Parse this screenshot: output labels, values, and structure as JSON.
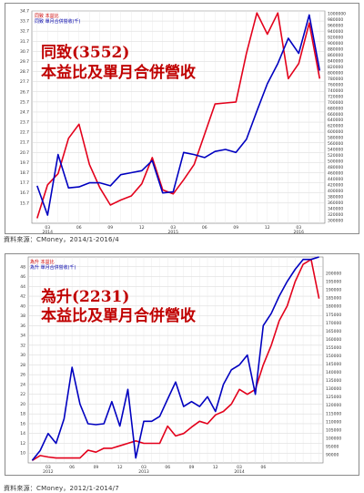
{
  "chart_data": [
    {
      "type": "line",
      "title_line1": "同致(3552)",
      "title_line2": "本益比及單月合併營收",
      "legend": [
        "同致 本益比",
        "同致 單月合併營收(千)"
      ],
      "source": "資料來源：CMoney，2014/1-2016/4",
      "left_axis": {
        "ylim": [
          13.7,
          34.7
        ],
        "ticks": [
          "34.7",
          "33.7",
          "32.7",
          "31.7",
          "30.7",
          "29.7",
          "28.7",
          "27.7",
          "26.7",
          "25.7",
          "24.7",
          "23.7",
          "22.7",
          "21.7",
          "20.7",
          "19.7",
          "18.7",
          "17.7",
          "16.7",
          "15.7"
        ]
      },
      "right_axis": {
        "ylim": [
          290000,
          1010000
        ],
        "ticks": [
          "1000000",
          "980000",
          "960000",
          "940000",
          "920000",
          "900000",
          "880000",
          "860000",
          "840000",
          "820000",
          "800000",
          "780000",
          "760000",
          "740000",
          "720000",
          "700000",
          "680000",
          "660000",
          "640000",
          "620000",
          "600000",
          "580000",
          "560000",
          "540000",
          "520000",
          "500000",
          "480000",
          "460000",
          "440000",
          "420000",
          "400000",
          "380000",
          "360000",
          "340000",
          "320000",
          "300000"
        ]
      },
      "x_tick_labels": [
        "03",
        "06",
        "09",
        "12",
        "03",
        "06",
        "09",
        "12",
        "03"
      ],
      "x_year_labels": [
        "2014",
        "2015",
        "2016"
      ],
      "series": [
        {
          "name": "本益比",
          "color": "#e3001b",
          "axis": "left",
          "values": [
            14.2,
            17.5,
            18.6,
            22.1,
            23.5,
            19.5,
            17.2,
            15.5,
            16.0,
            16.4,
            17.6,
            20.2,
            17.0,
            16.6,
            18.0,
            19.5,
            22.5,
            25.5,
            25.6,
            25.7,
            30.5,
            34.5,
            32.4,
            34.5,
            28.0,
            29.5,
            33.5,
            28.0
          ]
        },
        {
          "name": "單月合併營收(千)",
          "color": "#0000c0",
          "axis": "left",
          "values": [
            17.4,
            14.5,
            20.5,
            17.2,
            17.3,
            17.7,
            17.7,
            17.4,
            18.5,
            18.7,
            18.9,
            19.9,
            16.7,
            16.8,
            20.7,
            20.5,
            20.2,
            20.8,
            21.0,
            20.7,
            22.0,
            24.8,
            27.5,
            29.5,
            32.0,
            30.5,
            34.3,
            28.8
          ]
        }
      ]
    },
    {
      "type": "line",
      "title_line1": "為升(2231)",
      "title_line2": "本益比及單月合併營收",
      "legend": [
        "為升 本益比",
        "為升 單月合併營收(千)"
      ],
      "source": "資料來源：CMoney，2012/1-2014/7",
      "left_axis": {
        "ylim": [
          8,
          50
        ],
        "ticks": [
          "48",
          "46",
          "44",
          "42",
          "40",
          "38",
          "36",
          "34",
          "32",
          "30",
          "28",
          "26",
          "24",
          "22",
          "20",
          "18",
          "16",
          "14",
          "12",
          "10"
        ]
      },
      "right_axis": {
        "ylim": [
          85000,
          210000
        ],
        "ticks": [
          "200000",
          "195000",
          "190000",
          "185000",
          "180000",
          "175000",
          "170000",
          "165000",
          "160000",
          "155000",
          "150000",
          "145000",
          "140000",
          "135000",
          "130000",
          "125000",
          "120000",
          "115000",
          "110000",
          "105000",
          "100000",
          "95000",
          "90000"
        ]
      },
      "x_tick_labels": [
        "03",
        "06",
        "09",
        "12",
        "03",
        "06",
        "09",
        "12",
        "03",
        "06"
      ],
      "x_year_labels": [
        "2012",
        "2013",
        "2014"
      ],
      "series": [
        {
          "name": "本益比",
          "color": "#e3001b",
          "axis": "left",
          "values": [
            8.5,
            9.5,
            9.2,
            9.0,
            9.0,
            9.0,
            9.0,
            10.6,
            10.2,
            11.0,
            11.0,
            11.5,
            12.0,
            12.5,
            12.0,
            12.0,
            12.0,
            15.5,
            13.5,
            14.0,
            15.3,
            16.5,
            16.0,
            17.8,
            18.5,
            20.0,
            23.0,
            22.0,
            23.0,
            28.0,
            32.0,
            37.0,
            40.0,
            45.0,
            48.5,
            49.5,
            41.5
          ]
        },
        {
          "name": "單月合併營收(千)",
          "color": "#0000c0",
          "axis": "left",
          "values": [
            8.5,
            10.5,
            14.0,
            12.0,
            17.0,
            27.5,
            20.0,
            16.0,
            15.8,
            16.0,
            20.5,
            15.5,
            23.0,
            9.0,
            16.5,
            16.5,
            17.5,
            21.0,
            24.5,
            19.5,
            20.5,
            19.5,
            21.5,
            18.5,
            24.0,
            27.0,
            28.0,
            30.0,
            22.0,
            36.0,
            38.5,
            42.0,
            45.0,
            47.5,
            49.5,
            49.5,
            50.0
          ]
        }
      ]
    }
  ]
}
